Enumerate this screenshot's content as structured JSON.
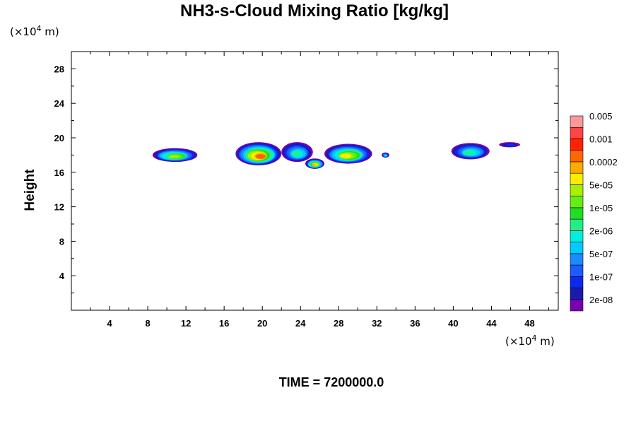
{
  "chart_data": {
    "type": "heatmap",
    "title": "NH3-s-Cloud Mixing Ratio [kg/kg]",
    "ylabel": "Height",
    "y_unit_prefix": "(×10",
    "y_unit_exp": "4",
    "y_unit_suffix": " m)",
    "x_unit_prefix": "(×10",
    "x_unit_exp": "4",
    "x_unit_suffix": " m)",
    "xlim": [
      0,
      51
    ],
    "ylim": [
      0,
      30
    ],
    "x_ticks": [
      4,
      8,
      12,
      16,
      20,
      24,
      28,
      32,
      36,
      40,
      44,
      48
    ],
    "y_ticks": [
      4,
      8,
      12,
      16,
      20,
      24,
      28
    ],
    "time_label": "TIME = 7200000.0",
    "colorbar": {
      "colors": [
        "#7a00b0",
        "#1a1ab0",
        "#0a2aee",
        "#1a5cff",
        "#1a8cff",
        "#00ccff",
        "#00eedd",
        "#22ee88",
        "#22dd22",
        "#66ee11",
        "#aaee00",
        "#ffee00",
        "#ffaa00",
        "#ff6600",
        "#ff2200",
        "#ff4444",
        "#ff9999"
      ],
      "labels": [
        "2e-08",
        "1e-07",
        "5e-07",
        "2e-06",
        "1e-05",
        "5e-05",
        "0.0002",
        "0.001",
        "0.005"
      ]
    },
    "cloud_regions": [
      {
        "x": [
          8.5,
          13.2
        ],
        "y": [
          17.2,
          18.8
        ],
        "max_level": 10
      },
      {
        "x": [
          17.2,
          22.0
        ],
        "y": [
          16.8,
          19.5
        ],
        "max_level": 13
      },
      {
        "x": [
          22.0,
          25.3
        ],
        "y": [
          17.2,
          19.5
        ],
        "max_level": 7
      },
      {
        "x": [
          24.5,
          26.5
        ],
        "y": [
          16.4,
          17.6
        ],
        "max_level": 12
      },
      {
        "x": [
          26.5,
          31.5
        ],
        "y": [
          17.0,
          19.3
        ],
        "max_level": 11
      },
      {
        "x": [
          32.5,
          33.3
        ],
        "y": [
          17.7,
          18.3
        ],
        "max_level": 6
      },
      {
        "x": [
          39.8,
          43.8
        ],
        "y": [
          17.5,
          19.4
        ],
        "max_level": 7
      },
      {
        "x": [
          44.8,
          47.0
        ],
        "y": [
          18.9,
          19.5
        ],
        "max_level": 2
      }
    ]
  }
}
